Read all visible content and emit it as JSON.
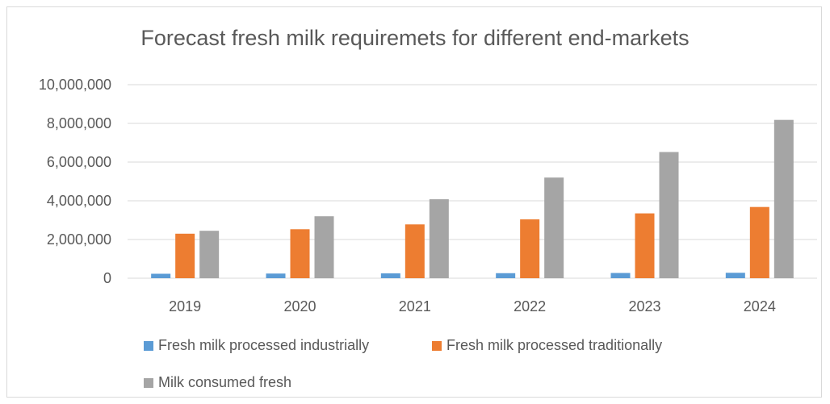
{
  "chart_data": {
    "type": "bar",
    "title": "Forecast fresh milk requiremets for different end-markets",
    "categories": [
      "2019",
      "2020",
      "2021",
      "2022",
      "2023",
      "2024"
    ],
    "series": [
      {
        "name": "Fresh milk processed industrially",
        "color": "#5b9bd5",
        "values": [
          230000,
          240000,
          250000,
          260000,
          270000,
          280000
        ]
      },
      {
        "name": "Fresh milk processed traditionally",
        "color": "#ed7d31",
        "values": [
          2300000,
          2530000,
          2780000,
          3040000,
          3350000,
          3680000
        ]
      },
      {
        "name": "Milk consumed fresh",
        "color": "#a5a5a5",
        "values": [
          2450000,
          3200000,
          4080000,
          5200000,
          6520000,
          8180000
        ]
      }
    ],
    "y_ticks": [
      "0",
      "2,000,000",
      "4,000,000",
      "6,000,000",
      "8,000,000",
      "10,000,000"
    ],
    "ylim": [
      0,
      10000000
    ],
    "xlabel": "",
    "ylabel": "",
    "grid": true,
    "legend_position": "bottom"
  }
}
